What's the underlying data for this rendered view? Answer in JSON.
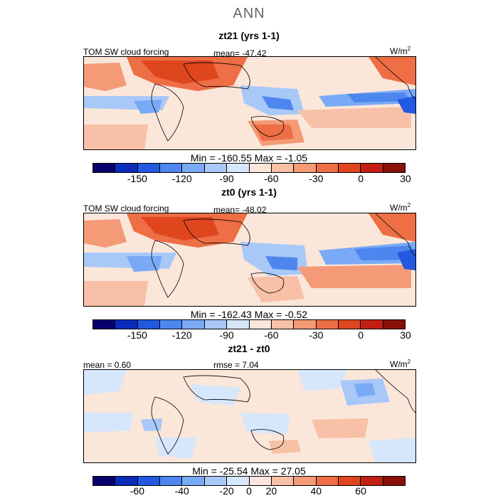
{
  "title": "ANN",
  "units_base": "W/m",
  "units_exp": "2",
  "palette": [
    "#08006c",
    "#0b2bbd",
    "#2259e0",
    "#4d86ef",
    "#7aaaf6",
    "#a8c8f8",
    "#d6e6fb",
    "#fbe6da",
    "#f8c0a6",
    "#f49a76",
    "#ee6e45",
    "#e0461e",
    "#c31f13",
    "#8a0f0a"
  ],
  "panels": [
    {
      "title": "zt21 (yrs 1-1)",
      "left_label": "TOM SW cloud forcing",
      "center_label": "mean= -47.42",
      "range_label": "Min = -160.55 Max =  -1.05",
      "ticks": [
        "-150",
        "-120",
        "-90",
        "-60",
        "-30",
        "0",
        "30"
      ]
    },
    {
      "title": "zt0 (yrs 1-1)",
      "left_label": "TOM SW cloud forcing",
      "center_label": "mean= -48.02",
      "range_label": "Min = -162.43 Max =  -0.52",
      "ticks": [
        "-150",
        "-120",
        "-90",
        "-60",
        "-30",
        "0",
        "30"
      ]
    },
    {
      "title": "zt21 - zt0",
      "left_label": "mean =   0.60",
      "center_label": "rmse =   7.04",
      "range_label": "Min = -25.54 Max =  27.05",
      "ticks": [
        "-60",
        "-40",
        "-20",
        "0",
        "20",
        "40",
        "60"
      ]
    }
  ]
}
